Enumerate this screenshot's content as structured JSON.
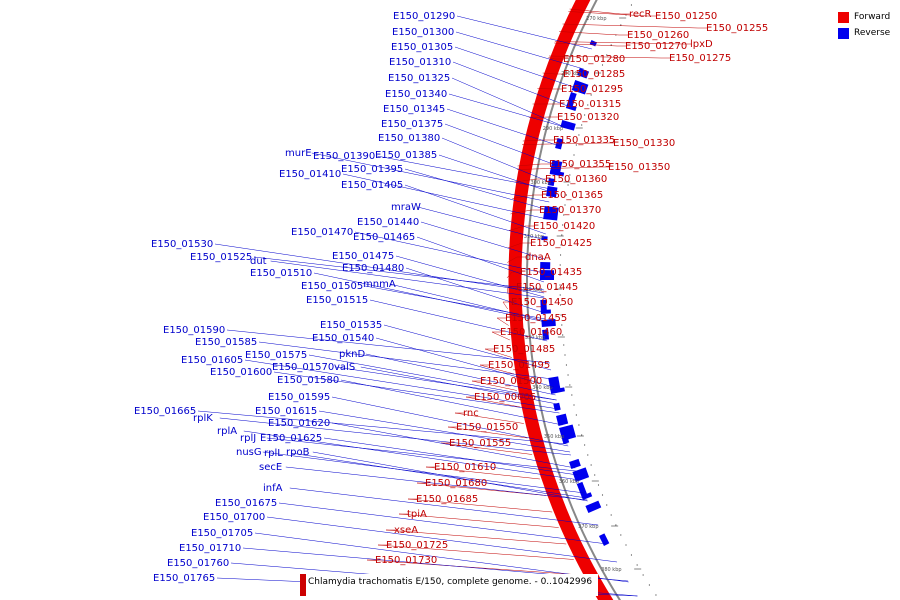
{
  "title": "Chlamydia trachomatis E/150, complete genome. - 0..1042996",
  "legend": [
    {
      "label": "Forward",
      "color": "#ee0000"
    },
    {
      "label": "Reverse",
      "color": "#0000ee"
    }
  ],
  "colors": {
    "forward": "#ee0000",
    "reverse": "#0000ee",
    "backbone": "#888888"
  },
  "tick_labels": [
    "270 kbp",
    "280 kbp",
    "290 kbp",
    "300 kbp",
    "310 kbp",
    "320 kbp",
    "330 kbp",
    "340 kbp",
    "350 kbp",
    "360 kbp",
    "370 kbp",
    "380 kbp"
  ],
  "forward_labels": [
    "recR",
    "E150_01250",
    "E150_01255",
    "E150_01260",
    "E150_01270",
    "lpxD",
    "E150_01275",
    "E150_01280",
    "E150_01285",
    "E150_01295",
    "E150_01315",
    "E150_01320",
    "E150_01335",
    "E150_01330",
    "E150_01355",
    "E150_01350",
    "E150_01360",
    "E150_01365",
    "E150_01370",
    "E150_01420",
    "E150_01425",
    "dnaA",
    "E150_01435",
    "E150_01445",
    "E150_01450",
    "E150_01455",
    "E150_01460",
    "E150_01485",
    "E150_01495",
    "E150_01500",
    "E150_00005",
    "rnc",
    "E150_01550",
    "E150_01555",
    "E150_01610",
    "E150_01680",
    "E150_01685",
    "tpiA",
    "xseA",
    "E150_01725",
    "E150_01730"
  ],
  "reverse_labels": [
    "E150_01290",
    "E150_01300",
    "E150_01305",
    "E150_01310",
    "E150_01325",
    "E150_01340",
    "E150_01345",
    "E150_01375",
    "E150_01380",
    "murE",
    "E150_01390",
    "E150_01385",
    "E150_01395",
    "E150_01410",
    "E150_01405",
    "mraW",
    "E150_01440",
    "E150_01470",
    "E150_01465",
    "E150_01530",
    "E150_01525",
    "dut",
    "E150_01475",
    "E150_01480",
    "E150_01510",
    "E150_01505",
    "mnmA",
    "E150_01515",
    "E150_01535",
    "E150_01540",
    "E150_01590",
    "E150_01585",
    "pknD",
    "E150_01575",
    "E150_01605",
    "E150_01570",
    "valS",
    "E150_01600",
    "E150_01580",
    "E150_01595",
    "E150_01665",
    "rplK",
    "E150_01615",
    "E150_01620",
    "rplA",
    "rplJ",
    "E150_01625",
    "nusG",
    "rplL",
    "rpoB",
    "secE",
    "infA",
    "E150_01675",
    "E150_01700",
    "E150_01705",
    "E150_01710",
    "E150_01760",
    "E150_01765"
  ]
}
